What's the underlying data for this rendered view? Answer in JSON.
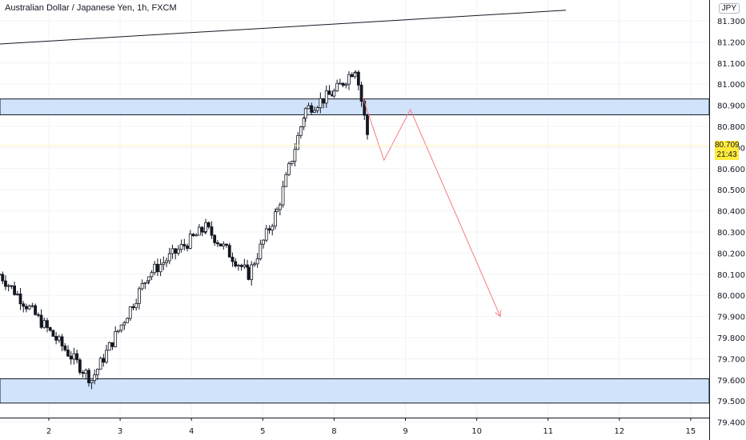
{
  "header": {
    "title": "Australian Dollar / Japanese Yen, 1h, FXCM",
    "currency": "JPY"
  },
  "price_tag": {
    "price": "80.709",
    "countdown": "21:43"
  },
  "colors": {
    "up": "#131722",
    "down": "#131722",
    "zone_fill": "#d1e3fb",
    "zone_border": "#131722",
    "projection": "#f77c80",
    "trendline": "#131722",
    "grid": "#f0f3fa"
  },
  "chart_data": {
    "type": "candlestick",
    "title": "Australian Dollar / Japanese Yen, 1h, FXCM",
    "ylim": [
      79.36,
      81.38
    ],
    "y_ticks": [
      "81.300",
      "81.200",
      "81.100",
      "81.000",
      "80.900",
      "80.800",
      "80.700",
      "80.600",
      "80.500",
      "80.400",
      "80.300",
      "80.200",
      "80.100",
      "80.000",
      "79.900",
      "79.800",
      "79.700",
      "79.600",
      "79.500",
      "79.400"
    ],
    "x_ticks": [
      "2",
      "3",
      "4",
      "5",
      "8",
      "9",
      "10",
      "11",
      "12",
      "15"
    ],
    "x_tick_days": [
      1.0,
      2.0,
      3.0,
      4.0,
      5.0,
      6.0,
      7.0,
      8.0,
      9.0,
      10.0
    ],
    "xlim": [
      0.31,
      10.25
    ],
    "last_price": 80.709,
    "zones": [
      {
        "name": "resistance",
        "y_top": 80.93,
        "y_bottom": 80.855
      },
      {
        "name": "support",
        "y_top": 79.605,
        "y_bottom": 79.49
      }
    ],
    "trendline": {
      "from": [
        0.31,
        81.19
      ],
      "to": [
        8.25,
        81.35
      ]
    },
    "projection": [
      [
        5.4,
        80.94
      ],
      [
        5.7,
        80.64
      ],
      [
        6.07,
        80.88
      ],
      [
        7.33,
        79.9
      ]
    ],
    "segments": [
      {
        "start": 0.31,
        "end": 1.6,
        "from": 80.1,
        "to": 79.6
      },
      {
        "start": 1.6,
        "end": 2.4,
        "from": 79.6,
        "to": 80.1
      },
      {
        "start": 2.4,
        "end": 3.2,
        "from": 80.1,
        "to": 80.32
      },
      {
        "start": 3.2,
        "end": 3.8,
        "from": 80.32,
        "to": 80.1
      },
      {
        "start": 3.8,
        "end": 4.2,
        "from": 80.1,
        "to": 80.4
      },
      {
        "start": 4.2,
        "end": 4.6,
        "from": 80.4,
        "to": 80.88
      },
      {
        "start": 4.6,
        "end": 5.0,
        "from": 80.88,
        "to": 80.96
      },
      {
        "start": 5.0,
        "end": 5.3,
        "from": 80.96,
        "to": 81.08
      },
      {
        "start": 5.3,
        "end": 5.5,
        "from": 81.08,
        "to": 80.7
      }
    ]
  }
}
